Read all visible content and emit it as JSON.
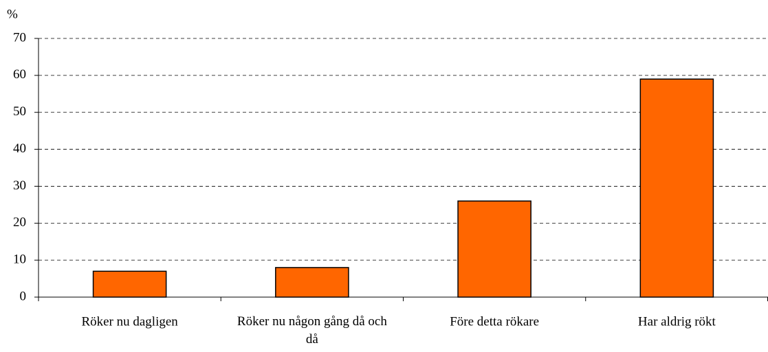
{
  "chart_data": {
    "type": "bar",
    "y_axis_label": "%",
    "categories": [
      "Röker nu dagligen",
      "Röker nu någon gång då och då",
      "Före detta rökare",
      "Har aldrig rökt"
    ],
    "values": [
      7,
      8,
      26,
      59
    ],
    "color": "#ff6600",
    "ylim": [
      0,
      70
    ],
    "yticks": [
      0,
      10,
      20,
      30,
      40,
      50,
      60,
      70
    ],
    "grid": true
  }
}
